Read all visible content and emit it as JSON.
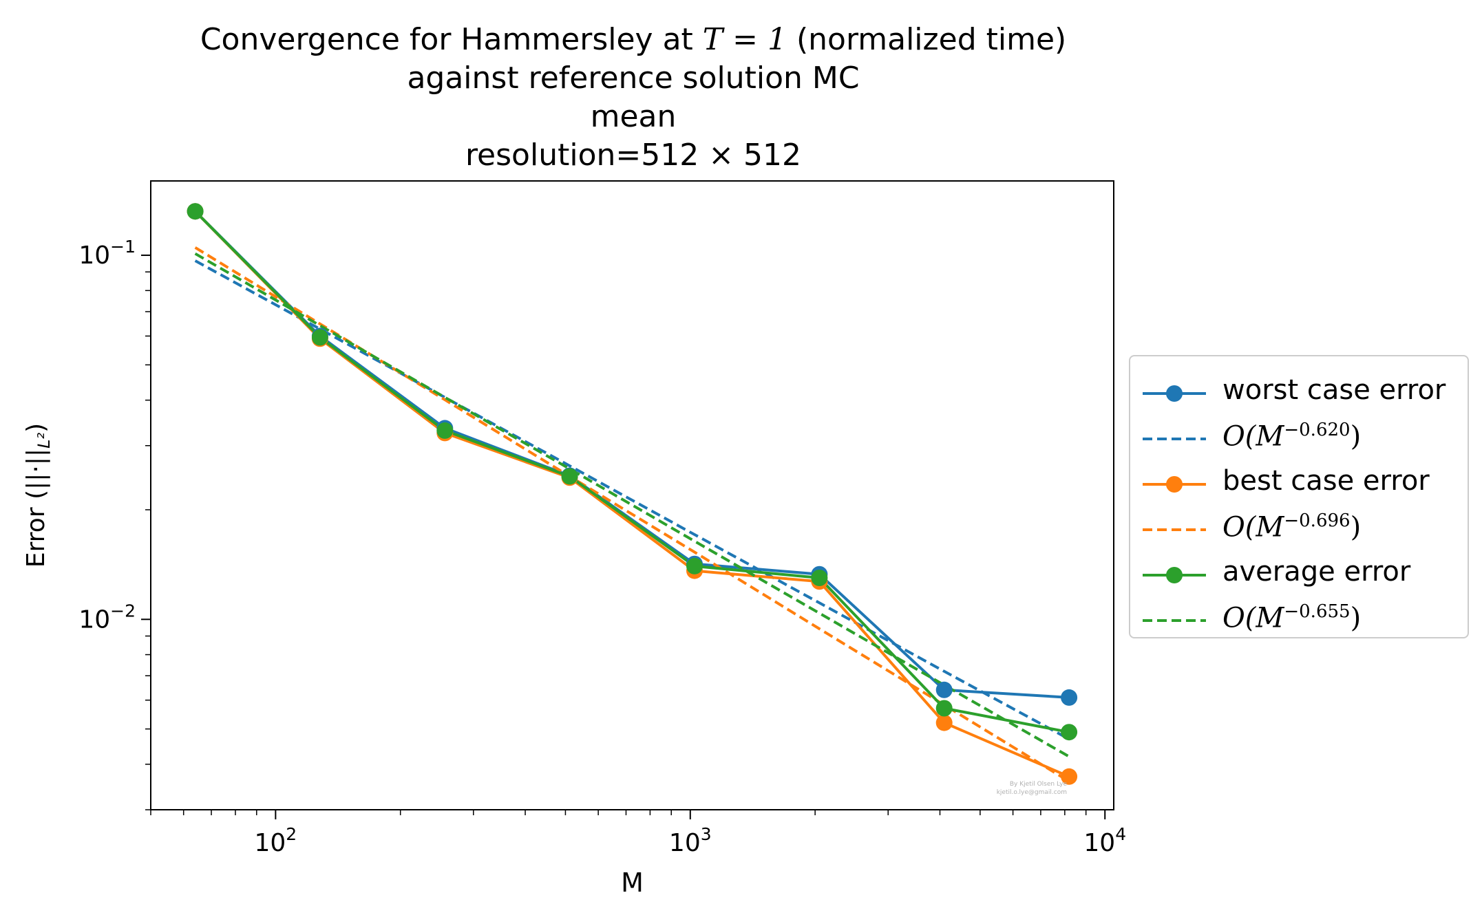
{
  "chart_data": {
    "type": "line",
    "title_lines": [
      "Convergence for Hammersley at",
      "(normalized time)",
      "against reference solution MC",
      "mean",
      "resolution=512 × 512"
    ],
    "title_math": "T = 1",
    "xlabel": "M",
    "ylabel": "Error (||·||",
    "ylabel_sub": "L²",
    "ylabel_close": ")",
    "xscale": "log",
    "yscale": "log",
    "xlim": [
      50,
      10500
    ],
    "ylim": [
      0.003,
      0.16
    ],
    "x_ticks": [
      {
        "value": 100,
        "base": "10",
        "exp": "2"
      },
      {
        "value": 1000,
        "base": "10",
        "exp": "3"
      },
      {
        "value": 10000,
        "base": "10",
        "exp": "4"
      }
    ],
    "y_ticks": [
      {
        "value": 0.01,
        "base": "10",
        "exp": "−2"
      },
      {
        "value": 0.1,
        "base": "10",
        "exp": "−1"
      }
    ],
    "grid": false,
    "legend_position": "right, outside",
    "x": [
      64,
      128,
      256,
      512,
      1024,
      2048,
      4096,
      8192
    ],
    "series": [
      {
        "name": "worst case error",
        "color": "#1f77b4",
        "style": "solid-marker",
        "values": [
          0.132,
          0.06,
          0.0335,
          0.0248,
          0.0142,
          0.0133,
          0.0064,
          0.0061
        ]
      },
      {
        "name": "O(M",
        "exp": "−0.620",
        "close": ")",
        "color": "#1f77b4",
        "style": "dashed",
        "values": [
          0.0966,
          0.0627,
          0.0407,
          0.0264,
          0.0171,
          0.0111,
          0.0072,
          0.00469
        ]
      },
      {
        "name": "best case error",
        "color": "#ff7f0e",
        "style": "solid-marker",
        "values": [
          0.132,
          0.059,
          0.0325,
          0.0245,
          0.0136,
          0.0127,
          0.0052,
          0.0037
        ]
      },
      {
        "name": "O(M",
        "exp": "−0.696",
        "close": ")",
        "color": "#ff7f0e",
        "style": "dashed",
        "values": [
          0.105,
          0.0648,
          0.0401,
          0.0247,
          0.0153,
          0.00942,
          0.00582,
          0.00359
        ]
      },
      {
        "name": "average error",
        "color": "#2ca02c",
        "style": "solid-marker",
        "values": [
          0.132,
          0.0595,
          0.033,
          0.0247,
          0.014,
          0.013,
          0.0057,
          0.0049
        ]
      },
      {
        "name": "O(M",
        "exp": "−0.655",
        "close": ")",
        "color": "#2ca02c",
        "style": "dashed",
        "values": [
          0.101,
          0.0641,
          0.0407,
          0.0259,
          0.0164,
          0.0104,
          0.0066,
          0.0042
        ]
      }
    ],
    "watermark": [
      "By Kjetil Olsen Lye",
      "kjetil.o.lye@gmail.com"
    ]
  }
}
